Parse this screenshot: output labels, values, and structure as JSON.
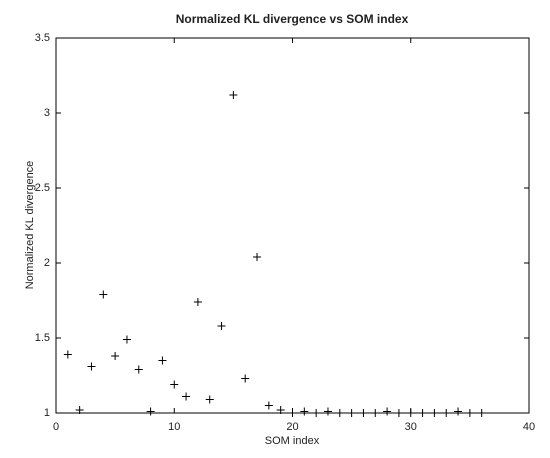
{
  "chart_data": {
    "type": "scatter",
    "title": "Normalized KL divergence vs SOM index",
    "x_label": "SOM index",
    "y_label": "Normalized KL divergence",
    "x": [
      1,
      2,
      3,
      4,
      5,
      6,
      7,
      8,
      9,
      10,
      11,
      12,
      13,
      14,
      15,
      16,
      17,
      18,
      19,
      20,
      21,
      22,
      23,
      24,
      25,
      26,
      27,
      28,
      29,
      30,
      31,
      32,
      33,
      34,
      35,
      36
    ],
    "values": [
      1.39,
      1.02,
      1.31,
      1.79,
      1.38,
      1.49,
      1.29,
      1.01,
      1.35,
      1.19,
      1.11,
      1.74,
      1.09,
      1.58,
      3.12,
      1.23,
      2.04,
      1.05,
      1.02,
      1.0,
      1.01,
      1.0,
      1.01,
      1.0,
      1.0,
      1.0,
      1.0,
      1.01,
      1.0,
      1.0,
      1.0,
      1.0,
      1.0,
      1.01,
      1.0,
      1.0
    ],
    "color": "#000000",
    "marker": "+",
    "xlim": [
      0,
      40
    ],
    "xticks": [
      0,
      10,
      20,
      30,
      40
    ],
    "ylim": [
      1,
      3.5
    ],
    "yticks": [
      1,
      1.5,
      2,
      2.5,
      3,
      3.5
    ],
    "grid": false
  }
}
